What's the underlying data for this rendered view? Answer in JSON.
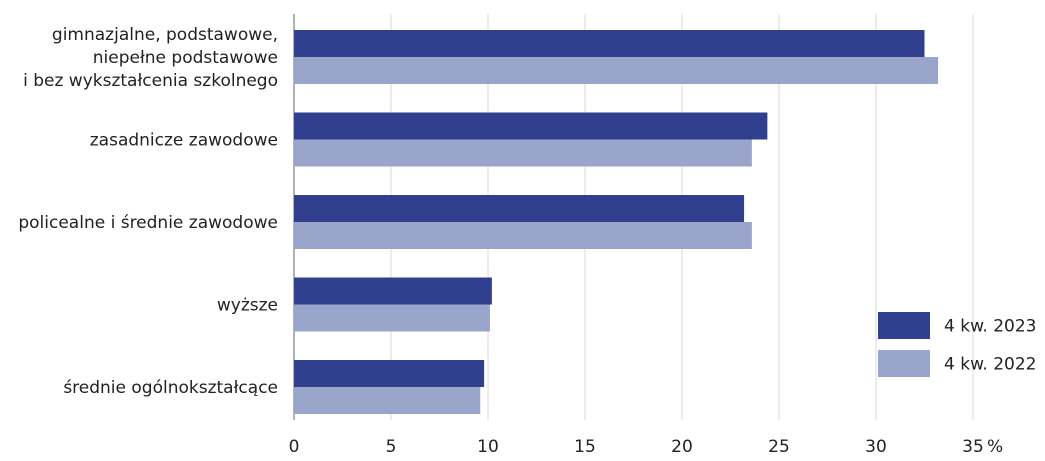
{
  "chart_data": {
    "type": "bar",
    "orientation": "horizontal",
    "categories": [
      [
        "gimnazjalne, podstawowe,",
        "niepełne podstawowe",
        "i bez wykształcenia szkolnego"
      ],
      [
        "zasadnicze zawodowe"
      ],
      [
        "policealne i średnie zawodowe"
      ],
      [
        "wyższe"
      ],
      [
        "średnie ogólnokształcące"
      ]
    ],
    "series": [
      {
        "name": "4 kw. 2023",
        "color": "#313f8f",
        "values": [
          32.5,
          24.4,
          23.2,
          10.2,
          9.8
        ]
      },
      {
        "name": "4 kw. 2022",
        "color": "#9aa5cb",
        "values": [
          33.2,
          23.6,
          23.6,
          10.1,
          9.6
        ]
      }
    ],
    "xlim": [
      0,
      35
    ],
    "xticks": [
      0,
      5,
      10,
      15,
      20,
      25,
      30,
      35
    ],
    "xunit": "%",
    "grid": true,
    "legend_position": "bottom-right"
  }
}
